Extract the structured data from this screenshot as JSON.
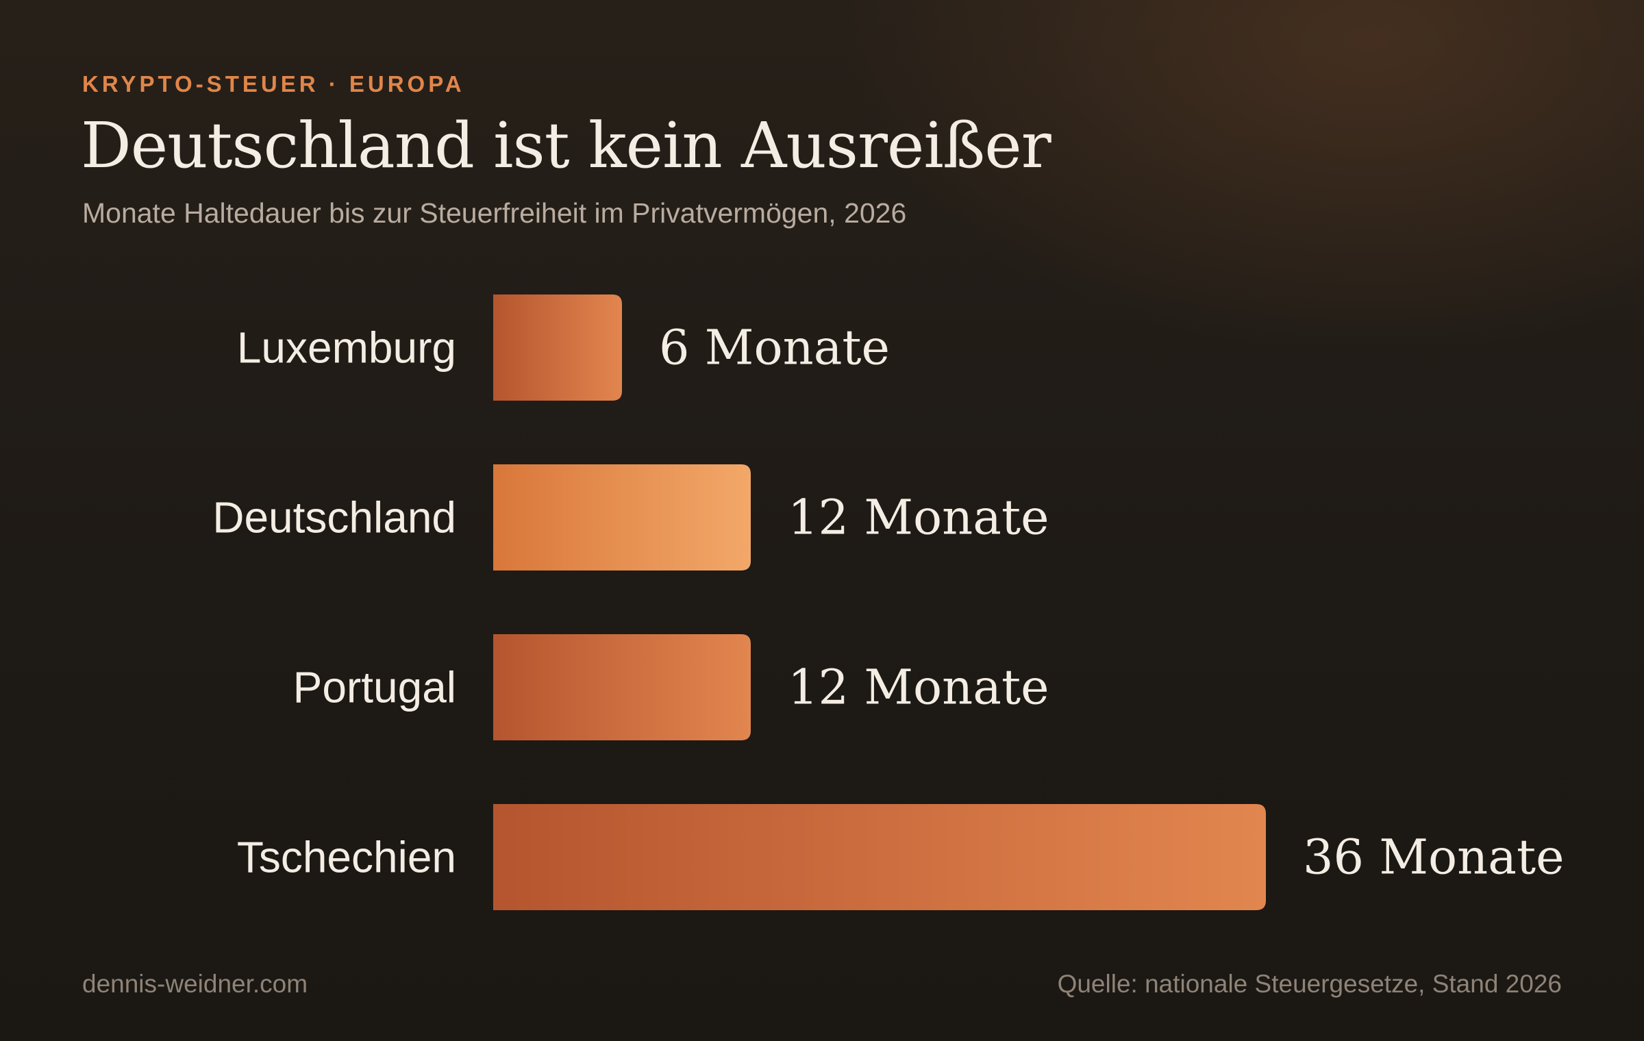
{
  "header": {
    "kicker": "KRYPTO-STEUER · EUROPA",
    "title": "Deutschland ist kein Ausreißer",
    "subtitle": "Monate Haltedauer bis zur Steuerfreiheit im Privatvermögen, 2026"
  },
  "footer": {
    "site": "dennis-weidner.com",
    "source": "Quelle: nationale Steuergesetze, Stand 2026"
  },
  "colors": {
    "accent": "#e0864a",
    "highlight_bar": "#f2a869",
    "bar_dark": "#b5552f",
    "bar_light": "#e2864f",
    "background": "#1e1a16"
  },
  "chart_data": {
    "type": "bar",
    "orientation": "horizontal",
    "categories": [
      "Luxemburg",
      "Deutschland",
      "Portugal",
      "Tschechien"
    ],
    "values": [
      6,
      12,
      12,
      36
    ],
    "value_labels": [
      "6 Monate",
      "12 Monate",
      "12 Monate",
      "36 Monate"
    ],
    "highlight": "Deutschland",
    "grid": false,
    "axes_visible": false,
    "xlim": [
      0,
      36
    ]
  }
}
